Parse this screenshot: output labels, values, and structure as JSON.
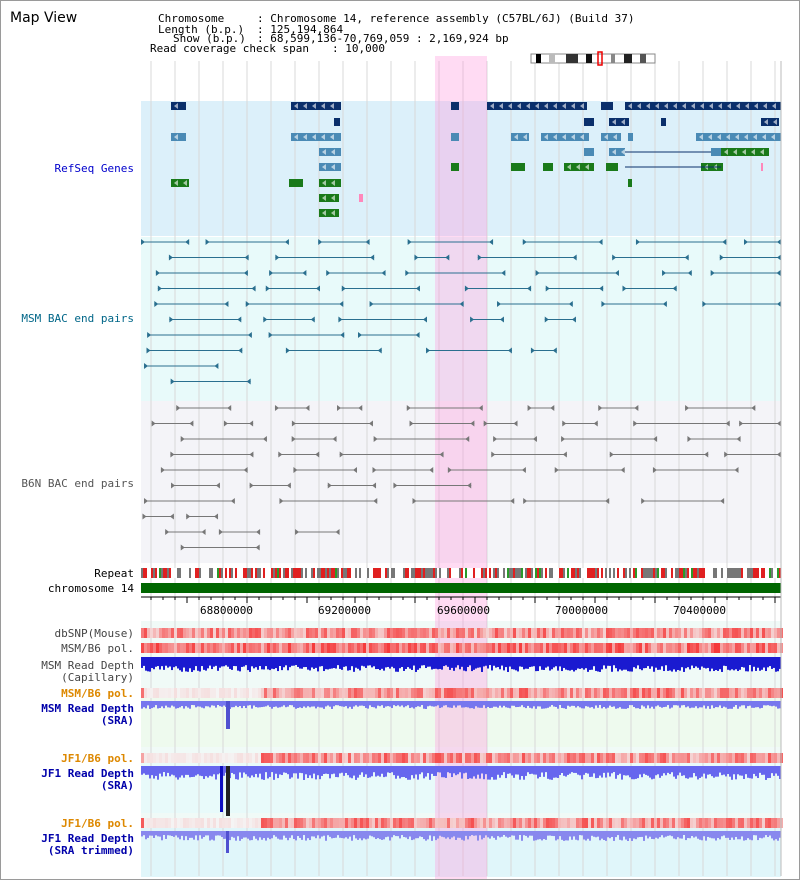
{
  "title": "Map View",
  "info": {
    "chromosome_label": "Chromosome",
    "chromosome_value": ": Chromosome 14, reference assembly (C57BL/6J) (Build 37)",
    "length_label": "Length (b.p.)",
    "length_value": ": 125,194,864",
    "show_label": "Show (b.p.)",
    "show_value": ": 68,599,136-70,769,059 : 2,169,924 bp",
    "coverage_label": "Read coverage check span",
    "coverage_value": ": 10,000"
  },
  "tracks": {
    "refseq": "RefSeq Genes",
    "msm_bac": "MSM BAC end pairs",
    "b6n_bac": "B6N BAC end pairs",
    "repeat": "Repeat",
    "chromosome": "chromosome 14",
    "dbsnp": "dbSNP(Mouse)",
    "msm_b6_pol_1": "MSM/B6 pol.",
    "msm_read_depth_cap_1": "MSM Read Depth",
    "msm_read_depth_cap_2": "(Capillary)",
    "msm_b6_pol_2": "MSM/B6 pol.",
    "msm_read_depth_sra_1": "MSM Read Depth",
    "msm_read_depth_sra_2": "(SRA)",
    "jf1_b6_pol_1": "JF1/B6 pol.",
    "jf1_read_depth_sra_1": "JF1 Read Depth",
    "jf1_read_depth_sra_2": "(SRA)",
    "jf1_b6_pol_2": "JF1/B6 pol.",
    "jf1_read_depth_trim_1": "JF1 Read Depth",
    "jf1_read_depth_trim_2": "(SRA trimmed)"
  },
  "axis": {
    "ticks": [
      "68800000",
      "69200000",
      "69600000",
      "70000000",
      "70400000"
    ]
  },
  "colors": {
    "refseq_label": "#0000cc",
    "msm_label": "#006688",
    "b6n_label": "#555555",
    "pol_orange": "#dd8800",
    "depth_blue": "#0000aa",
    "highlight": "#ff99dd"
  }
}
